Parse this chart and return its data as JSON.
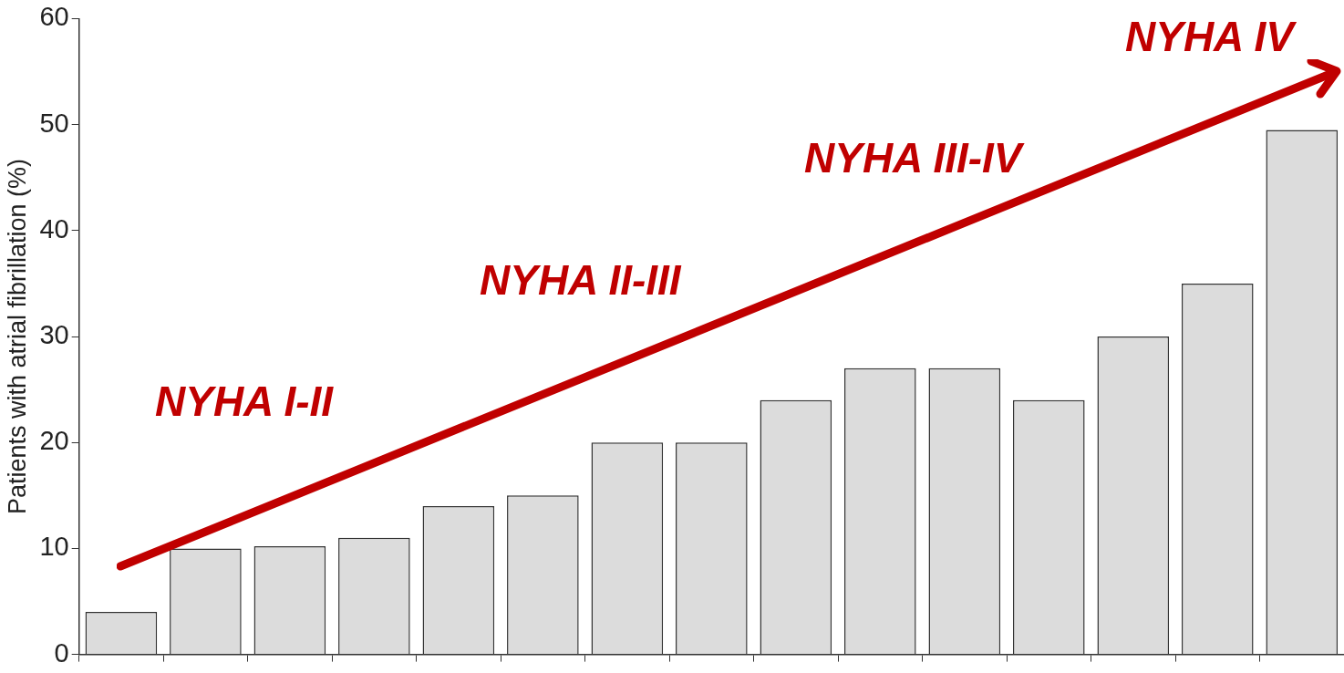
{
  "chart_data": {
    "type": "bar",
    "ylabel": "Patients with atrial fibrillation (%)",
    "categories": [
      null,
      null,
      null,
      null,
      null,
      null,
      null,
      null,
      null,
      null,
      null,
      null,
      null,
      null,
      null
    ],
    "values": [
      4,
      10,
      10.2,
      11,
      14,
      15,
      20,
      20,
      24,
      27,
      27,
      24,
      30,
      35,
      49.5
    ],
    "color": "#dcdcdc",
    "ylim": [
      0,
      60
    ],
    "yticks": [
      0,
      10,
      20,
      30,
      40,
      50,
      60
    ],
    "grid": false,
    "legend": false,
    "annotations": [
      "NYHA I-II",
      "NYHA II-III",
      "NYHA III-IV",
      "NYHA IV"
    ]
  }
}
